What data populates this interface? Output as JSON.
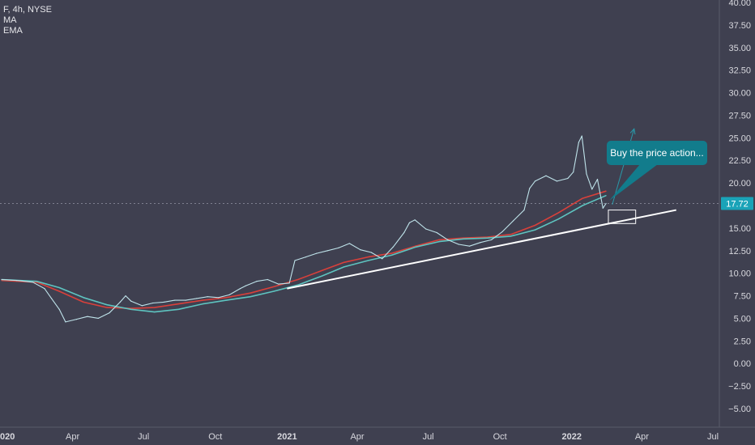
{
  "legend": {
    "symbol_line": "F, 4h, NYSE",
    "ma_label": "MA",
    "ema_label": "EMA"
  },
  "callout": {
    "text": "Buy the price action..."
  },
  "chart_data": {
    "type": "line",
    "title": "F, 4h, NYSE",
    "xlabel": "",
    "ylabel": "",
    "ylim": [
      -5.0,
      40.0
    ],
    "x_range": [
      "2020-01-01",
      "2022-07-01"
    ],
    "y_ticks": [
      40.0,
      37.5,
      35.0,
      32.5,
      30.0,
      27.5,
      25.0,
      22.5,
      20.0,
      17.5,
      15.0,
      12.5,
      10.0,
      7.5,
      5.0,
      2.5,
      0.0,
      -2.5,
      -5.0
    ],
    "y_tick_labels": [
      "40.00",
      "37.50",
      "35.00",
      "32.50",
      "30.00",
      "27.50",
      "25.00",
      "22.50",
      "20.00",
      "",
      "15.00",
      "12.50",
      "10.00",
      "7.50",
      "5.00",
      "2.50",
      "0.00",
      "−2.50",
      "−5.00"
    ],
    "x_ticks": [
      {
        "date": "2020-01-01",
        "label": "020",
        "bold": true
      },
      {
        "date": "2020-04-01",
        "label": "Apr",
        "bold": false
      },
      {
        "date": "2020-07-01",
        "label": "Jul",
        "bold": false
      },
      {
        "date": "2020-10-01",
        "label": "Oct",
        "bold": false
      },
      {
        "date": "2021-01-01",
        "label": "2021",
        "bold": true
      },
      {
        "date": "2021-04-01",
        "label": "Apr",
        "bold": false
      },
      {
        "date": "2021-07-01",
        "label": "Jul",
        "bold": false
      },
      {
        "date": "2021-10-01",
        "label": "Oct",
        "bold": false
      },
      {
        "date": "2022-01-01",
        "label": "2022",
        "bold": true
      },
      {
        "date": "2022-04-01",
        "label": "Apr",
        "bold": false
      },
      {
        "date": "2022-07-01",
        "label": "Jul",
        "bold": false
      }
    ],
    "last_price": 17.72,
    "last_price_label": "17.72",
    "series": [
      {
        "name": "F",
        "color": "#bfe3ea",
        "x": [
          "2020-01-01",
          "2020-01-20",
          "2020-02-10",
          "2020-02-25",
          "2020-03-05",
          "2020-03-15",
          "2020-03-23",
          "2020-04-06",
          "2020-04-20",
          "2020-05-04",
          "2020-05-18",
          "2020-06-01",
          "2020-06-08",
          "2020-06-15",
          "2020-06-29",
          "2020-07-13",
          "2020-07-27",
          "2020-08-10",
          "2020-08-24",
          "2020-09-07",
          "2020-09-21",
          "2020-10-05",
          "2020-10-19",
          "2020-11-02",
          "2020-11-09",
          "2020-11-23",
          "2020-12-07",
          "2020-12-21",
          "2021-01-04",
          "2021-01-11",
          "2021-01-25",
          "2021-02-08",
          "2021-02-22",
          "2021-03-08",
          "2021-03-22",
          "2021-04-05",
          "2021-04-19",
          "2021-05-03",
          "2021-05-17",
          "2021-05-31",
          "2021-06-07",
          "2021-06-14",
          "2021-06-28",
          "2021-07-12",
          "2021-07-26",
          "2021-08-09",
          "2021-08-23",
          "2021-09-06",
          "2021-09-20",
          "2021-10-04",
          "2021-10-18",
          "2021-11-01",
          "2021-11-08",
          "2021-11-15",
          "2021-11-29",
          "2021-12-13",
          "2021-12-27",
          "2022-01-03",
          "2022-01-10",
          "2022-01-14",
          "2022-01-20",
          "2022-01-27",
          "2022-02-03",
          "2022-02-10",
          "2022-02-14"
        ],
        "values": [
          9.3,
          9.2,
          9.0,
          8.3,
          7.2,
          6.0,
          4.6,
          4.9,
          5.2,
          5.0,
          5.6,
          6.8,
          7.5,
          6.9,
          6.4,
          6.7,
          6.8,
          7.0,
          7.0,
          7.2,
          7.4,
          7.3,
          7.6,
          8.3,
          8.6,
          9.1,
          9.3,
          8.8,
          8.9,
          11.4,
          11.8,
          12.2,
          12.5,
          12.8,
          13.3,
          12.6,
          12.3,
          11.6,
          12.9,
          14.5,
          15.6,
          15.9,
          14.9,
          14.5,
          13.7,
          13.2,
          13.0,
          13.4,
          13.7,
          14.6,
          15.8,
          17.0,
          19.4,
          20.2,
          20.8,
          20.2,
          20.5,
          21.2,
          24.5,
          25.2,
          21.0,
          19.3,
          20.4,
          17.2,
          17.72
        ]
      },
      {
        "name": "MA",
        "color": "#d9403b",
        "x": [
          "2020-01-01",
          "2020-02-15",
          "2020-03-15",
          "2020-04-15",
          "2020-05-15",
          "2020-06-15",
          "2020-07-15",
          "2020-08-15",
          "2020-09-15",
          "2020-10-15",
          "2020-11-15",
          "2020-12-15",
          "2021-01-15",
          "2021-02-15",
          "2021-03-15",
          "2021-04-15",
          "2021-05-15",
          "2021-06-15",
          "2021-07-15",
          "2021-08-15",
          "2021-09-15",
          "2021-10-15",
          "2021-11-15",
          "2021-12-15",
          "2022-01-15",
          "2022-02-14"
        ],
        "values": [
          9.2,
          9.0,
          8.0,
          6.8,
          6.2,
          6.1,
          6.2,
          6.6,
          7.0,
          7.3,
          7.8,
          8.5,
          9.3,
          10.3,
          11.2,
          11.8,
          12.2,
          13.0,
          13.7,
          13.9,
          14.0,
          14.3,
          15.3,
          16.7,
          18.3,
          19.1
        ]
      },
      {
        "name": "EMA",
        "color": "#5ec4c0",
        "x": [
          "2020-01-01",
          "2020-02-15",
          "2020-03-15",
          "2020-04-15",
          "2020-05-15",
          "2020-06-15",
          "2020-07-15",
          "2020-08-15",
          "2020-09-15",
          "2020-10-15",
          "2020-11-15",
          "2020-12-15",
          "2021-01-15",
          "2021-02-15",
          "2021-03-15",
          "2021-04-15",
          "2021-05-15",
          "2021-06-15",
          "2021-07-15",
          "2021-08-15",
          "2021-09-15",
          "2021-10-15",
          "2021-11-15",
          "2021-12-15",
          "2022-01-15",
          "2022-02-14"
        ],
        "values": [
          9.3,
          9.1,
          8.4,
          7.3,
          6.5,
          6.0,
          5.7,
          6.0,
          6.6,
          7.0,
          7.4,
          8.0,
          8.7,
          9.7,
          10.7,
          11.4,
          12.0,
          12.9,
          13.5,
          13.8,
          13.9,
          14.1,
          14.8,
          16.0,
          17.5,
          18.6
        ]
      }
    ],
    "trendline": {
      "color": "#ffffff",
      "start": {
        "date": "2021-01-01",
        "value": 8.3
      },
      "end": {
        "date": "2022-05-15",
        "value": 17.0
      }
    },
    "box": {
      "color": "#ffffff",
      "start_date": "2022-02-17",
      "end_date": "2022-03-24",
      "low": 15.5,
      "high": 17.0
    },
    "arrow": {
      "color": "#2a98a8",
      "start": {
        "date": "2022-02-22",
        "value": 17.6
      },
      "end": {
        "date": "2022-03-22",
        "value": 26.0
      }
    },
    "grid": false,
    "legend_position": "top-left"
  }
}
